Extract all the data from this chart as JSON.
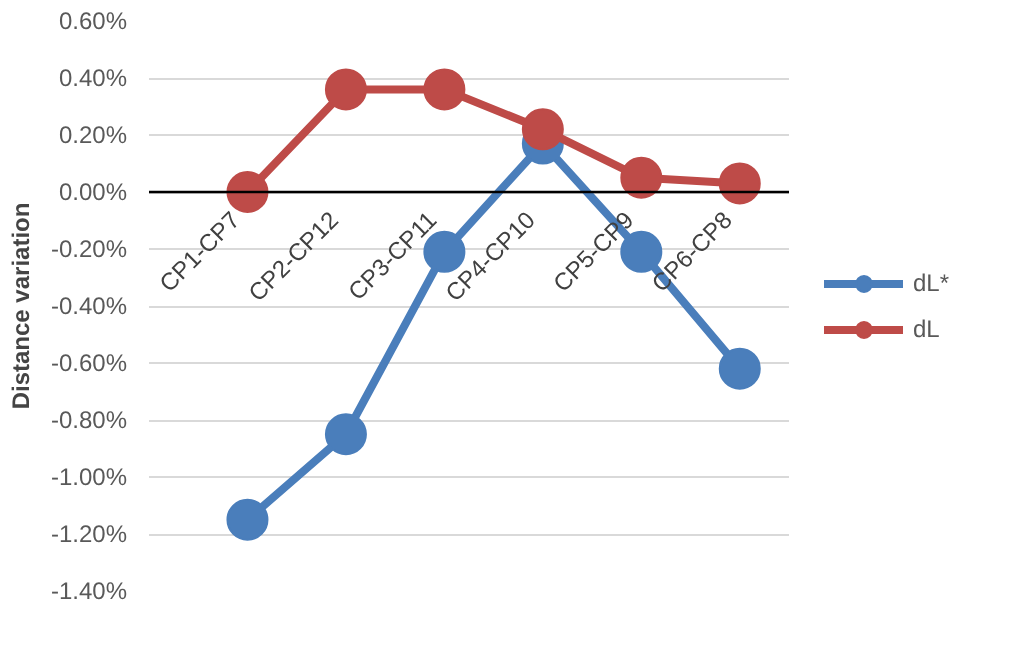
{
  "chart_data": {
    "type": "line",
    "ylabel": "Distance variation",
    "categories": [
      "CP1-CP7",
      "CP2-CP12",
      "CP3-CP11",
      "CP4-CP10",
      "CP5-CP9",
      "CP6-CP8"
    ],
    "series": [
      {
        "name": "dL*",
        "color": "#4a7ebb",
        "values": [
          -1.15,
          -0.85,
          -0.21,
          0.17,
          -0.21,
          -0.62
        ]
      },
      {
        "name": "dL",
        "color": "#be4b48",
        "values": [
          0.0,
          0.36,
          0.36,
          0.22,
          0.05,
          0.03
        ]
      }
    ],
    "ylim": [
      -1.4,
      0.6
    ],
    "yticks": [
      {
        "value": -1.4,
        "label": "-1.40%"
      },
      {
        "value": -1.2,
        "label": "-1.20%"
      },
      {
        "value": -1.0,
        "label": "-1.00%"
      },
      {
        "value": -0.8,
        "label": "-0.80%"
      },
      {
        "value": -0.6,
        "label": "-0.60%"
      },
      {
        "value": -0.4,
        "label": "-0.40%"
      },
      {
        "value": -0.2,
        "label": "-0.20%"
      },
      {
        "value": 0,
        "label": "0.00%"
      },
      {
        "value": 0.2,
        "label": "0.20%"
      },
      {
        "value": 0.4,
        "label": "0.40%"
      },
      {
        "value": 0.6,
        "label": "0.60%"
      }
    ],
    "grid": "y",
    "legend": "right",
    "marker": "circle",
    "line_style": "solid"
  }
}
